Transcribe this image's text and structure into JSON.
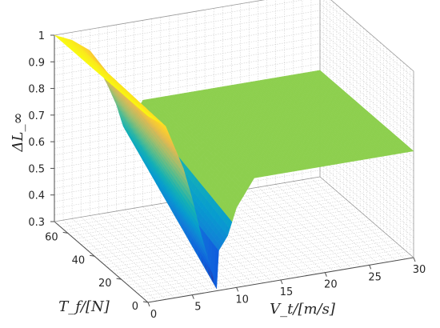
{
  "chart_data": {
    "type": "surface3d",
    "title": "",
    "xlabel": "V_t/[m/s]",
    "ylabel": "T_f/[N]",
    "zlabel": "ΔL_∞",
    "xlim": [
      0,
      30
    ],
    "ylim": [
      0,
      70
    ],
    "zlim": [
      0.3,
      1
    ],
    "x_ticks": [
      "0",
      "5",
      "10",
      "15",
      "20",
      "25",
      "30"
    ],
    "y_ticks": [
      "0",
      "20",
      "40",
      "60"
    ],
    "z_ticks": [
      "0.3",
      "0.4",
      "0.5",
      "0.6",
      "0.7",
      "0.8",
      "0.9",
      "1"
    ],
    "grid": true,
    "colormap": "parula",
    "surface_profile": {
      "x": [
        0,
        2,
        4,
        5,
        6,
        7,
        7.9,
        8,
        9,
        10,
        12,
        15,
        20,
        25,
        30
      ],
      "z_at_Tf_0": [
        1.0,
        0.95,
        0.78,
        0.66,
        0.52,
        0.4,
        0.29,
        0.45,
        0.5,
        0.6,
        0.7,
        0.7,
        0.7,
        0.7,
        0.7
      ],
      "z_at_Tf_70": [
        1.0,
        0.97,
        0.92,
        0.85,
        0.78,
        0.7,
        0.6,
        0.6,
        0.65,
        0.7,
        0.7,
        0.7,
        0.7,
        0.7,
        0.7
      ]
    },
    "flat_plateau_value": 0.7,
    "flat_plateau_color": "#8dcf4e"
  }
}
